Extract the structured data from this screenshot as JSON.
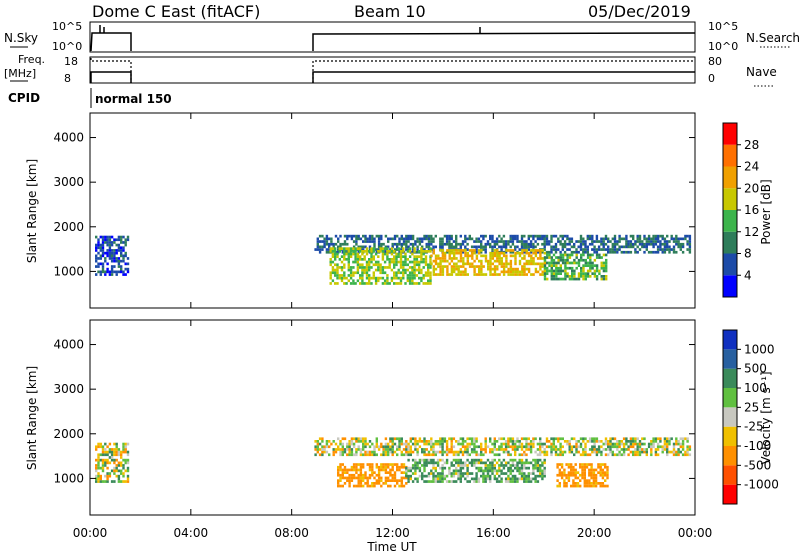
{
  "header": {
    "station": "Dome C East (fitACF)",
    "beam": "Beam 10",
    "date": "05/Dec/2019"
  },
  "top_panels": {
    "nsky_label": "N.Sky",
    "nsearch_label": "N.Search",
    "freq_label_1": "Freq.",
    "freq_label_2": "[MHz]",
    "nave_label": "Nave",
    "cpid_label": "CPID",
    "cpid_value": "normal 150",
    "ticks": {
      "nsky_top": "10^5",
      "nsky_bottom": "10^0",
      "nsearch_top": "10^5",
      "nsearch_bottom": "10^0",
      "freq_top": "18",
      "freq_bottom": "8",
      "nave_top": "80",
      "nave_bottom": "0"
    }
  },
  "axes": {
    "ylabel": "Slant Range [km]",
    "xlabel": "Time UT",
    "y_ticks": [
      "1000",
      "2000",
      "3000",
      "4000"
    ],
    "x_ticks": [
      "00:00",
      "04:00",
      "08:00",
      "12:00",
      "16:00",
      "20:00",
      "00:00"
    ]
  },
  "power_colorbar": {
    "label": "Power [dB]",
    "ticks": [
      "4",
      "8",
      "12",
      "16",
      "20",
      "24",
      "28"
    ],
    "colors": [
      "#0000ff",
      "#1c4ba8",
      "#2e7d5a",
      "#3cb44b",
      "#c8c800",
      "#f0a000",
      "#ff7000",
      "#ff0000"
    ]
  },
  "velocity_colorbar": {
    "label": "Velocity [m s⁻¹]",
    "ticks": [
      "1000",
      "500",
      "100",
      "25",
      "-25",
      "-100",
      "-500",
      "-1000"
    ],
    "colors": [
      "#1030c0",
      "#2860a0",
      "#3a8a5a",
      "#60c040",
      "#c8c8c0",
      "#f0c000",
      "#ff9000",
      "#ff5000",
      "#ff0000"
    ]
  },
  "chart_data": [
    {
      "type": "heatmap",
      "panel": "power",
      "ylabel": "Slant Range [km]",
      "zlabel": "Power [dB]",
      "xlim_hours": [
        0,
        24
      ],
      "ylim_km": [
        180,
        4550
      ],
      "observation_blocks_hours": [
        [
          0.2,
          1.55
        ],
        [
          8.85,
          24
        ]
      ],
      "echo_regions": [
        {
          "t": [
            0.2,
            1.5
          ],
          "r": [
            900,
            1800
          ],
          "dB": 6
        },
        {
          "t": [
            8.9,
            23.8
          ],
          "r": [
            1400,
            1800
          ],
          "dB": 8
        },
        {
          "t": [
            9.5,
            13.5
          ],
          "r": [
            700,
            1500
          ],
          "dB": 16
        },
        {
          "t": [
            13.5,
            18.0
          ],
          "r": [
            900,
            1500
          ],
          "dB": 20
        },
        {
          "t": [
            18.0,
            20.5
          ],
          "r": [
            800,
            1400
          ],
          "dB": 14
        }
      ]
    },
    {
      "type": "heatmap",
      "panel": "velocity",
      "ylabel": "Slant Range [km]",
      "zlabel": "Velocity [m s-1]",
      "xlim_hours": [
        0,
        24
      ],
      "ylim_km": [
        180,
        4550
      ],
      "echo_regions": [
        {
          "t": [
            0.2,
            1.5
          ],
          "r": [
            900,
            1800
          ],
          "v": 0
        },
        {
          "t": [
            8.9,
            23.8
          ],
          "r": [
            1500,
            1900
          ],
          "v": 0
        },
        {
          "t": [
            9.8,
            12.5
          ],
          "r": [
            800,
            1300
          ],
          "v": -200
        },
        {
          "t": [
            12.5,
            18.0
          ],
          "r": [
            900,
            1400
          ],
          "v": 100
        },
        {
          "t": [
            18.5,
            20.5
          ],
          "r": [
            800,
            1300
          ],
          "v": -200
        }
      ]
    }
  ]
}
